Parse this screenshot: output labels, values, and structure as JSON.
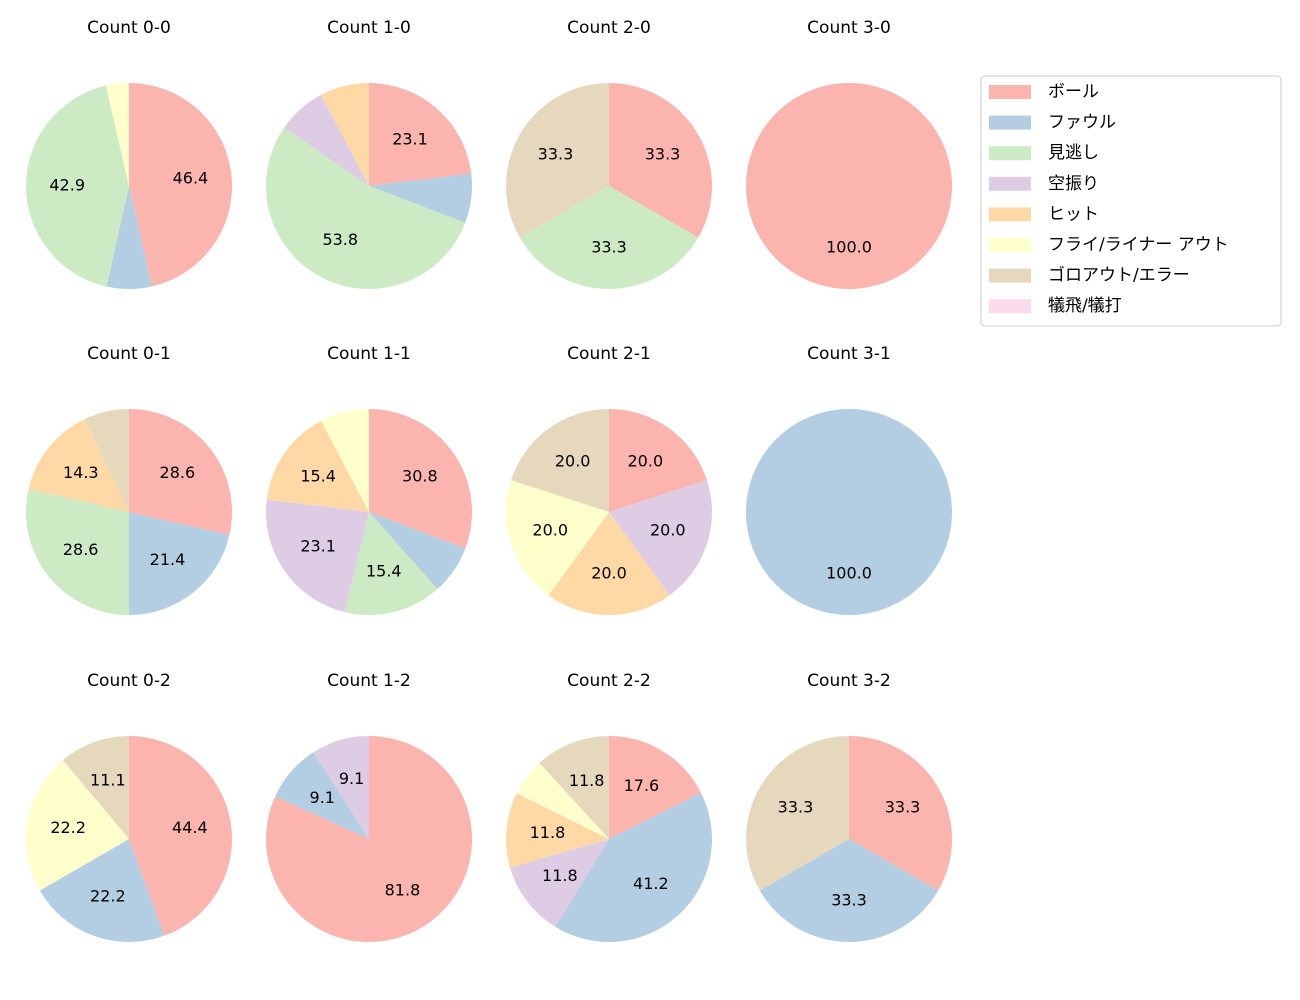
{
  "chart_data": [
    {
      "type": "pie",
      "title": "Count 0-0",
      "categories": [
        "ボール",
        "ファウル",
        "見逃し",
        "フライ/ライナー アウト"
      ],
      "values": [
        46.4,
        7.1,
        42.9,
        3.6
      ],
      "value_labels": [
        "46.4",
        null,
        "42.9",
        null
      ]
    },
    {
      "type": "pie",
      "title": "Count 1-0",
      "categories": [
        "ボール",
        "ファウル",
        "見逃し",
        "空振り",
        "ヒット"
      ],
      "values": [
        23.1,
        7.7,
        53.8,
        7.7,
        7.7
      ],
      "value_labels": [
        "23.1",
        null,
        "53.8",
        null,
        null
      ]
    },
    {
      "type": "pie",
      "title": "Count 2-0",
      "categories": [
        "ボール",
        "見逃し",
        "ゴロアウト/エラー"
      ],
      "values": [
        33.3,
        33.3,
        33.3
      ],
      "value_labels": [
        "33.3",
        "33.3",
        "33.3"
      ]
    },
    {
      "type": "pie",
      "title": "Count 3-0",
      "categories": [
        "ボール"
      ],
      "values": [
        100
      ],
      "value_labels": [
        "100.0"
      ]
    },
    {
      "type": "pie",
      "title": "Count 0-1",
      "categories": [
        "ボール",
        "ファウル",
        "見逃し",
        "ヒット",
        "ゴロアウト/エラー"
      ],
      "values": [
        28.6,
        21.4,
        28.6,
        14.3,
        7.1
      ],
      "value_labels": [
        "28.6",
        "21.4",
        "28.6",
        "14.3",
        null
      ]
    },
    {
      "type": "pie",
      "title": "Count 1-1",
      "categories": [
        "ボール",
        "ファウル",
        "見逃し",
        "空振り",
        "ヒット",
        "フライ/ライナー アウト"
      ],
      "values": [
        30.8,
        7.7,
        15.4,
        23.1,
        15.4,
        7.7
      ],
      "value_labels": [
        "30.8",
        null,
        "15.4",
        "23.1",
        "15.4",
        null
      ]
    },
    {
      "type": "pie",
      "title": "Count 2-1",
      "categories": [
        "ボール",
        "空振り",
        "ヒット",
        "フライ/ライナー アウト",
        "ゴロアウト/エラー"
      ],
      "values": [
        20,
        20,
        20,
        20,
        20
      ],
      "value_labels": [
        "20.0",
        "20.0",
        "20.0",
        "20.0",
        "20.0"
      ]
    },
    {
      "type": "pie",
      "title": "Count 3-1",
      "categories": [
        "ファウル"
      ],
      "values": [
        100
      ],
      "value_labels": [
        "100.0"
      ]
    },
    {
      "type": "pie",
      "title": "Count 0-2",
      "categories": [
        "ボール",
        "ファウル",
        "フライ/ライナー アウト",
        "ゴロアウト/エラー"
      ],
      "values": [
        44.4,
        22.2,
        22.2,
        11.1
      ],
      "value_labels": [
        "44.4",
        "22.2",
        "22.2",
        "11.1"
      ]
    },
    {
      "type": "pie",
      "title": "Count 1-2",
      "categories": [
        "ボール",
        "ファウル",
        "空振り"
      ],
      "values": [
        81.8,
        9.1,
        9.1
      ],
      "value_labels": [
        "81.8",
        "9.1",
        "9.1"
      ]
    },
    {
      "type": "pie",
      "title": "Count 2-2",
      "categories": [
        "ボール",
        "ファウル",
        "空振り",
        "ヒット",
        "フライ/ライナー アウト",
        "ゴロアウト/エラー"
      ],
      "values": [
        17.6,
        41.2,
        11.8,
        11.8,
        5.9,
        11.8
      ],
      "value_labels": [
        "17.6",
        "41.2",
        "11.8",
        "11.8",
        null,
        "11.8"
      ]
    },
    {
      "type": "pie",
      "title": "Count 3-2",
      "categories": [
        "ボール",
        "ファウル",
        "ゴロアウト/エラー"
      ],
      "values": [
        33.3,
        33.3,
        33.3
      ],
      "value_labels": [
        "33.3",
        "33.3",
        "33.3"
      ]
    }
  ],
  "legend": {
    "labels": [
      "ボール",
      "ファウル",
      "見逃し",
      "空振り",
      "ヒット",
      "フライ/ライナー アウト",
      "ゴロアウト/エラー",
      "犠飛/犠打"
    ],
    "colors": [
      "#fbb4ae",
      "#b3cde3",
      "#ccebc5",
      "#decbe4",
      "#fed9a6",
      "#ffffcc",
      "#e5d8bd",
      "#fddaec"
    ]
  }
}
